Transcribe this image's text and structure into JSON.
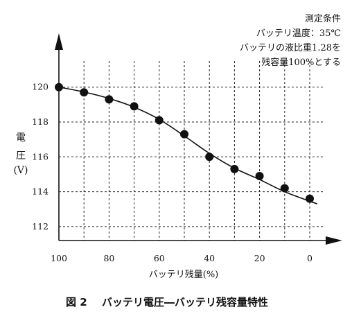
{
  "conditions": {
    "heading": "測定条件",
    "line1": "バッテリ温度：35℃",
    "line2": "バッテリの液比重1.28を",
    "line3": "残容量100%とする"
  },
  "caption": {
    "number": "図 2",
    "text": "バッテリ電圧―バッテリ残容量特性"
  },
  "chart_data": {
    "type": "scatter",
    "xlabel": "バッテリ残量(%)",
    "ylabel_chars": [
      "電",
      "圧",
      "(V)"
    ],
    "x_axis_reversed": true,
    "xlim": [
      100,
      0
    ],
    "ylim": [
      111.2,
      121.5
    ],
    "grid": true,
    "x_ticks": [
      100,
      80,
      60,
      40,
      20,
      0
    ],
    "y_ticks": [
      112,
      114,
      116,
      118,
      120
    ],
    "x_gridlines": [
      90,
      80,
      70,
      60,
      50,
      40,
      30,
      20,
      10,
      0
    ],
    "points": [
      {
        "x": 100,
        "y": 120.0
      },
      {
        "x": 90,
        "y": 119.7
      },
      {
        "x": 80,
        "y": 119.3
      },
      {
        "x": 70,
        "y": 118.9
      },
      {
        "x": 60,
        "y": 118.1
      },
      {
        "x": 50,
        "y": 117.3
      },
      {
        "x": 40,
        "y": 116.0
      },
      {
        "x": 30,
        "y": 115.3
      },
      {
        "x": 20,
        "y": 114.9
      },
      {
        "x": 10,
        "y": 114.2
      },
      {
        "x": 0,
        "y": 113.6
      }
    ],
    "curve": [
      {
        "x": 100,
        "y": 120.0
      },
      {
        "x": 90,
        "y": 119.72
      },
      {
        "x": 80,
        "y": 119.35
      },
      {
        "x": 70,
        "y": 118.85
      },
      {
        "x": 60,
        "y": 118.15
      },
      {
        "x": 50,
        "y": 117.2
      },
      {
        "x": 40,
        "y": 116.2
      },
      {
        "x": 30,
        "y": 115.35
      },
      {
        "x": 20,
        "y": 114.7
      },
      {
        "x": 10,
        "y": 114.0
      },
      {
        "x": -3,
        "y": 113.3
      }
    ]
  }
}
